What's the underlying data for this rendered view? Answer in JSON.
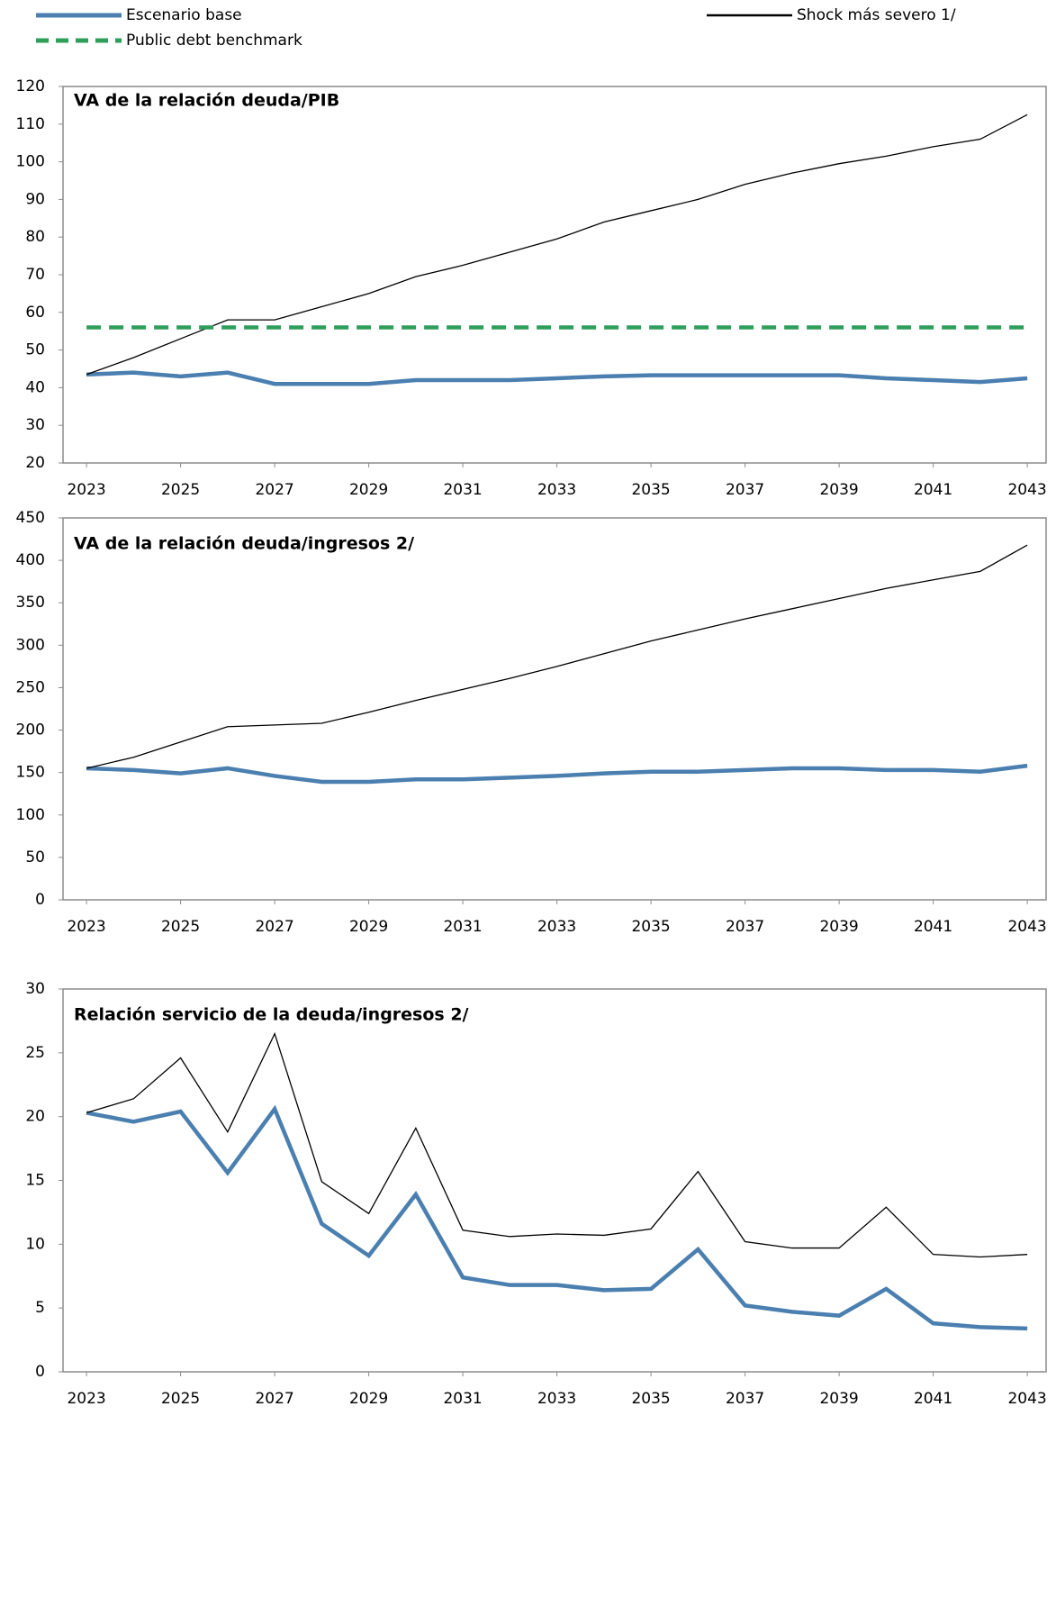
{
  "chart_data": [
    {
      "type": "line",
      "title": "VA de la relación deuda/PIB",
      "x": [
        2023,
        2024,
        2025,
        2026,
        2027,
        2028,
        2029,
        2030,
        2031,
        2032,
        2033,
        2034,
        2035,
        2036,
        2037,
        2038,
        2039,
        2040,
        2041,
        2042,
        2043
      ],
      "xlim": [
        2022.5,
        2043.4
      ],
      "xticks": [
        2023,
        2025,
        2027,
        2029,
        2031,
        2033,
        2035,
        2037,
        2039,
        2041,
        2043
      ],
      "ylim": [
        20,
        120
      ],
      "yticks": [
        20,
        30,
        40,
        50,
        60,
        70,
        80,
        90,
        100,
        110,
        120
      ],
      "series": [
        {
          "name": "Escenario base",
          "color": "#4a7fb0",
          "values": [
            43.5,
            44,
            43,
            44,
            41,
            41,
            41,
            42,
            42,
            42,
            42.5,
            43,
            43.3,
            43.3,
            43.3,
            43.3,
            43.3,
            42.5,
            42,
            41.5,
            42.5
          ]
        },
        {
          "name": "Shock más severo  1/",
          "color": "#000000",
          "values": [
            43.5,
            48,
            53,
            58,
            58,
            61.5,
            65,
            69.5,
            72.5,
            76,
            79.5,
            84,
            87,
            90,
            94,
            97,
            99.5,
            101.5,
            104,
            106,
            112.5
          ]
        },
        {
          "name": "Public debt benchmark",
          "color": "#2e9e5b",
          "dashed": true,
          "values": [
            56,
            56,
            56,
            56,
            56,
            56,
            56,
            56,
            56,
            56,
            56,
            56,
            56,
            56,
            56,
            56,
            56,
            56,
            56,
            56,
            56
          ]
        }
      ]
    },
    {
      "type": "line",
      "title": "VA de la relación deuda/ingresos 2/",
      "x": [
        2023,
        2024,
        2025,
        2026,
        2027,
        2028,
        2029,
        2030,
        2031,
        2032,
        2033,
        2034,
        2035,
        2036,
        2037,
        2038,
        2039,
        2040,
        2041,
        2042,
        2043
      ],
      "xlim": [
        2022.5,
        2043.4
      ],
      "xticks": [
        2023,
        2025,
        2027,
        2029,
        2031,
        2033,
        2035,
        2037,
        2039,
        2041,
        2043
      ],
      "ylim": [
        0,
        450
      ],
      "yticks": [
        0,
        50,
        100,
        150,
        200,
        250,
        300,
        350,
        400,
        450
      ],
      "series": [
        {
          "name": "Escenario base",
          "color": "#4a7fb0",
          "values": [
            155,
            153,
            149,
            155,
            146,
            139,
            139,
            142,
            142,
            144,
            146,
            149,
            151,
            151,
            153,
            155,
            155,
            153,
            153,
            151,
            158
          ]
        },
        {
          "name": "Shock más severo  1/",
          "color": "#000000",
          "values": [
            155,
            168,
            186,
            204,
            206,
            208,
            221,
            235,
            248,
            261,
            275,
            290,
            305,
            318,
            331,
            343,
            355,
            367,
            377,
            387,
            418
          ]
        }
      ]
    },
    {
      "type": "line",
      "title": "Relación servicio de la deuda/ingresos 2/",
      "x": [
        2023,
        2024,
        2025,
        2026,
        2027,
        2028,
        2029,
        2030,
        2031,
        2032,
        2033,
        2034,
        2035,
        2036,
        2037,
        2038,
        2039,
        2040,
        2041,
        2042,
        2043
      ],
      "xlim": [
        2022.5,
        2043.4
      ],
      "xticks": [
        2023,
        2025,
        2027,
        2029,
        2031,
        2033,
        2035,
        2037,
        2039,
        2041,
        2043
      ],
      "ylim": [
        0,
        30
      ],
      "yticks": [
        0,
        5,
        10,
        15,
        20,
        25,
        30
      ],
      "series": [
        {
          "name": "Escenario base",
          "color": "#4a7fb0",
          "values": [
            20.3,
            19.6,
            20.4,
            15.6,
            20.6,
            11.6,
            9.1,
            13.9,
            7.4,
            6.8,
            6.8,
            6.4,
            6.5,
            9.6,
            5.2,
            4.7,
            4.4,
            6.5,
            3.8,
            3.5,
            3.4
          ]
        },
        {
          "name": "Shock más severo  1/",
          "color": "#000000",
          "values": [
            20.3,
            21.4,
            24.6,
            18.8,
            26.5,
            14.9,
            12.4,
            19.1,
            11.1,
            10.6,
            10.8,
            10.7,
            11.2,
            15.7,
            10.2,
            9.7,
            9.7,
            12.9,
            9.2,
            9.0,
            9.2
          ]
        }
      ]
    }
  ]
}
